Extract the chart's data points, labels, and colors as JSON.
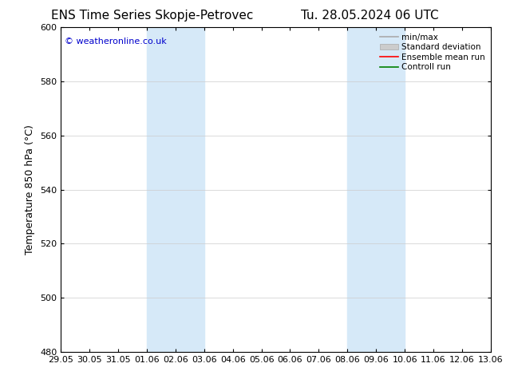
{
  "title_left": "ENS Time Series Skopje-Petrovec",
  "title_right": "Tu. 28.05.2024 06 UTC",
  "ylabel": "Temperature 850 hPa (°C)",
  "watermark": "© weatheronline.co.uk",
  "watermark_color": "#0000cc",
  "ylim": [
    480,
    600
  ],
  "yticks": [
    480,
    500,
    520,
    540,
    560,
    580,
    600
  ],
  "x_tick_labels": [
    "29.05",
    "30.05",
    "31.05",
    "01.06",
    "02.06",
    "03.06",
    "04.06",
    "05.06",
    "06.06",
    "07.06",
    "08.06",
    "09.06",
    "10.06",
    "11.06",
    "12.06",
    "13.06"
  ],
  "x_tick_positions": [
    0,
    1,
    2,
    3,
    4,
    5,
    6,
    7,
    8,
    9,
    10,
    11,
    12,
    13,
    14,
    15
  ],
  "shaded_bands": [
    {
      "x_start": 3,
      "x_end": 5,
      "color": "#d6e9f8"
    },
    {
      "x_start": 10,
      "x_end": 12,
      "color": "#d6e9f8"
    }
  ],
  "legend_entries": [
    {
      "label": "min/max",
      "color": "#aaaaaa",
      "linestyle": "-",
      "linewidth": 1.2,
      "type": "line"
    },
    {
      "label": "Standard deviation",
      "color": "#cccccc",
      "linestyle": "-",
      "linewidth": 5,
      "type": "patch"
    },
    {
      "label": "Ensemble mean run",
      "color": "#ff0000",
      "linestyle": "-",
      "linewidth": 1.2,
      "type": "line"
    },
    {
      "label": "Controll run",
      "color": "#008000",
      "linestyle": "-",
      "linewidth": 1.2,
      "type": "line"
    }
  ],
  "bg_color": "#ffffff",
  "plot_bg_color": "#ffffff",
  "title_fontsize": 11,
  "tick_fontsize": 8,
  "ylabel_fontsize": 9,
  "watermark_fontsize": 8,
  "grid_color": "#cccccc",
  "border_color": "#000000"
}
